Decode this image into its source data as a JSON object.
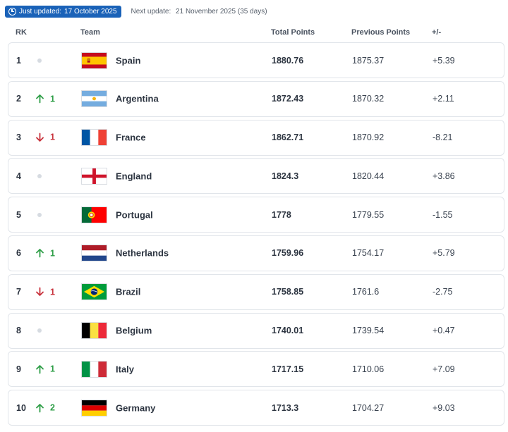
{
  "header": {
    "updated_label": "Just updated:",
    "updated_date": "17 October 2025",
    "next_label": "Next update:",
    "next_date": "21 November 2025 (35 days)"
  },
  "columns": {
    "rank": "RK",
    "team": "Team",
    "total": "Total Points",
    "previous": "Previous Points",
    "diff": "+/-"
  },
  "rows": [
    {
      "rank": "1",
      "move": "none",
      "change": "",
      "flag": "spain-flag-icon",
      "team": "Spain",
      "total": "1880.76",
      "previous": "1875.37",
      "diff": "+5.39"
    },
    {
      "rank": "2",
      "move": "up",
      "change": "1",
      "flag": "argentina-flag-icon",
      "team": "Argentina",
      "total": "1872.43",
      "previous": "1870.32",
      "diff": "+2.11"
    },
    {
      "rank": "3",
      "move": "down",
      "change": "1",
      "flag": "france-flag-icon",
      "team": "France",
      "total": "1862.71",
      "previous": "1870.92",
      "diff": "-8.21"
    },
    {
      "rank": "4",
      "move": "none",
      "change": "",
      "flag": "england-flag-icon",
      "team": "England",
      "total": "1824.3",
      "previous": "1820.44",
      "diff": "+3.86"
    },
    {
      "rank": "5",
      "move": "none",
      "change": "",
      "flag": "portugal-flag-icon",
      "team": "Portugal",
      "total": "1778",
      "previous": "1779.55",
      "diff": "-1.55"
    },
    {
      "rank": "6",
      "move": "up",
      "change": "1",
      "flag": "netherlands-flag-icon",
      "team": "Netherlands",
      "total": "1759.96",
      "previous": "1754.17",
      "diff": "+5.79"
    },
    {
      "rank": "7",
      "move": "down",
      "change": "1",
      "flag": "brazil-flag-icon",
      "team": "Brazil",
      "total": "1758.85",
      "previous": "1761.6",
      "diff": "-2.75"
    },
    {
      "rank": "8",
      "move": "none",
      "change": "",
      "flag": "belgium-flag-icon",
      "team": "Belgium",
      "total": "1740.01",
      "previous": "1739.54",
      "diff": "+0.47"
    },
    {
      "rank": "9",
      "move": "up",
      "change": "1",
      "flag": "italy-flag-icon",
      "team": "Italy",
      "total": "1717.15",
      "previous": "1710.06",
      "diff": "+7.09"
    },
    {
      "rank": "10",
      "move": "up",
      "change": "2",
      "flag": "germany-flag-icon",
      "team": "Germany",
      "total": "1713.3",
      "previous": "1704.27",
      "diff": "+9.03"
    }
  ],
  "colors": {
    "badge": "#1a62b8",
    "up": "#2e9e47",
    "down": "#c8323c"
  }
}
